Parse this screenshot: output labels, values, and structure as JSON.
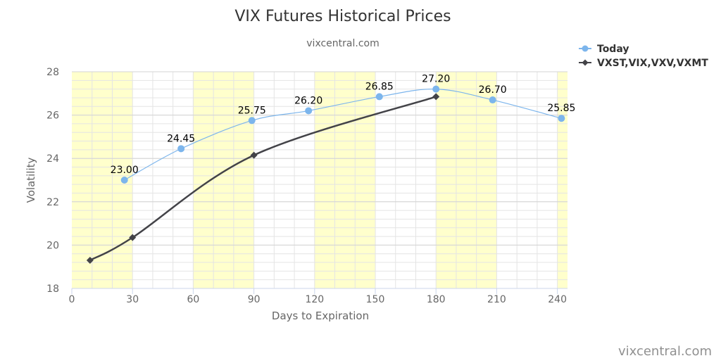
{
  "chart_data": {
    "type": "line",
    "title": "VIX Futures Historical Prices",
    "subtitle": "vixcentral.com",
    "credit": "vixcentral.com",
    "xlabel": "Days to Expiration",
    "ylabel": "Volatility",
    "xlim": [
      0,
      245
    ],
    "ylim": [
      18,
      28
    ],
    "xticks": [
      0,
      30,
      60,
      90,
      120,
      150,
      180,
      210,
      240
    ],
    "yticks": [
      18,
      20,
      22,
      24,
      26,
      28
    ],
    "grid": true,
    "legend_position": "top-right",
    "shaded_bands": [
      [
        0,
        30
      ],
      [
        60,
        90
      ],
      [
        120,
        150
      ],
      [
        180,
        210
      ],
      [
        240,
        245
      ]
    ],
    "band_color": "#ffffcc",
    "series": [
      {
        "name": "Today",
        "color": "#7cb5ec",
        "marker": "circle",
        "smooth": true,
        "show_labels": true,
        "points": [
          [
            26,
            23.0
          ],
          [
            54,
            24.45
          ],
          [
            89,
            25.75
          ],
          [
            117,
            26.2
          ],
          [
            152,
            26.85
          ],
          [
            180,
            27.2
          ],
          [
            208,
            26.7
          ],
          [
            242,
            25.85
          ]
        ],
        "labels": [
          "23.00",
          "24.45",
          "25.75",
          "26.20",
          "26.85",
          "27.20",
          "26.70",
          "25.85"
        ]
      },
      {
        "name": "VXST,VIX,VXV,VXMT",
        "color": "#434348",
        "marker": "diamond",
        "smooth": true,
        "show_labels": false,
        "points": [
          [
            9,
            19.3
          ],
          [
            30,
            20.35
          ],
          [
            90,
            24.15
          ],
          [
            180,
            26.85
          ]
        ]
      }
    ]
  }
}
